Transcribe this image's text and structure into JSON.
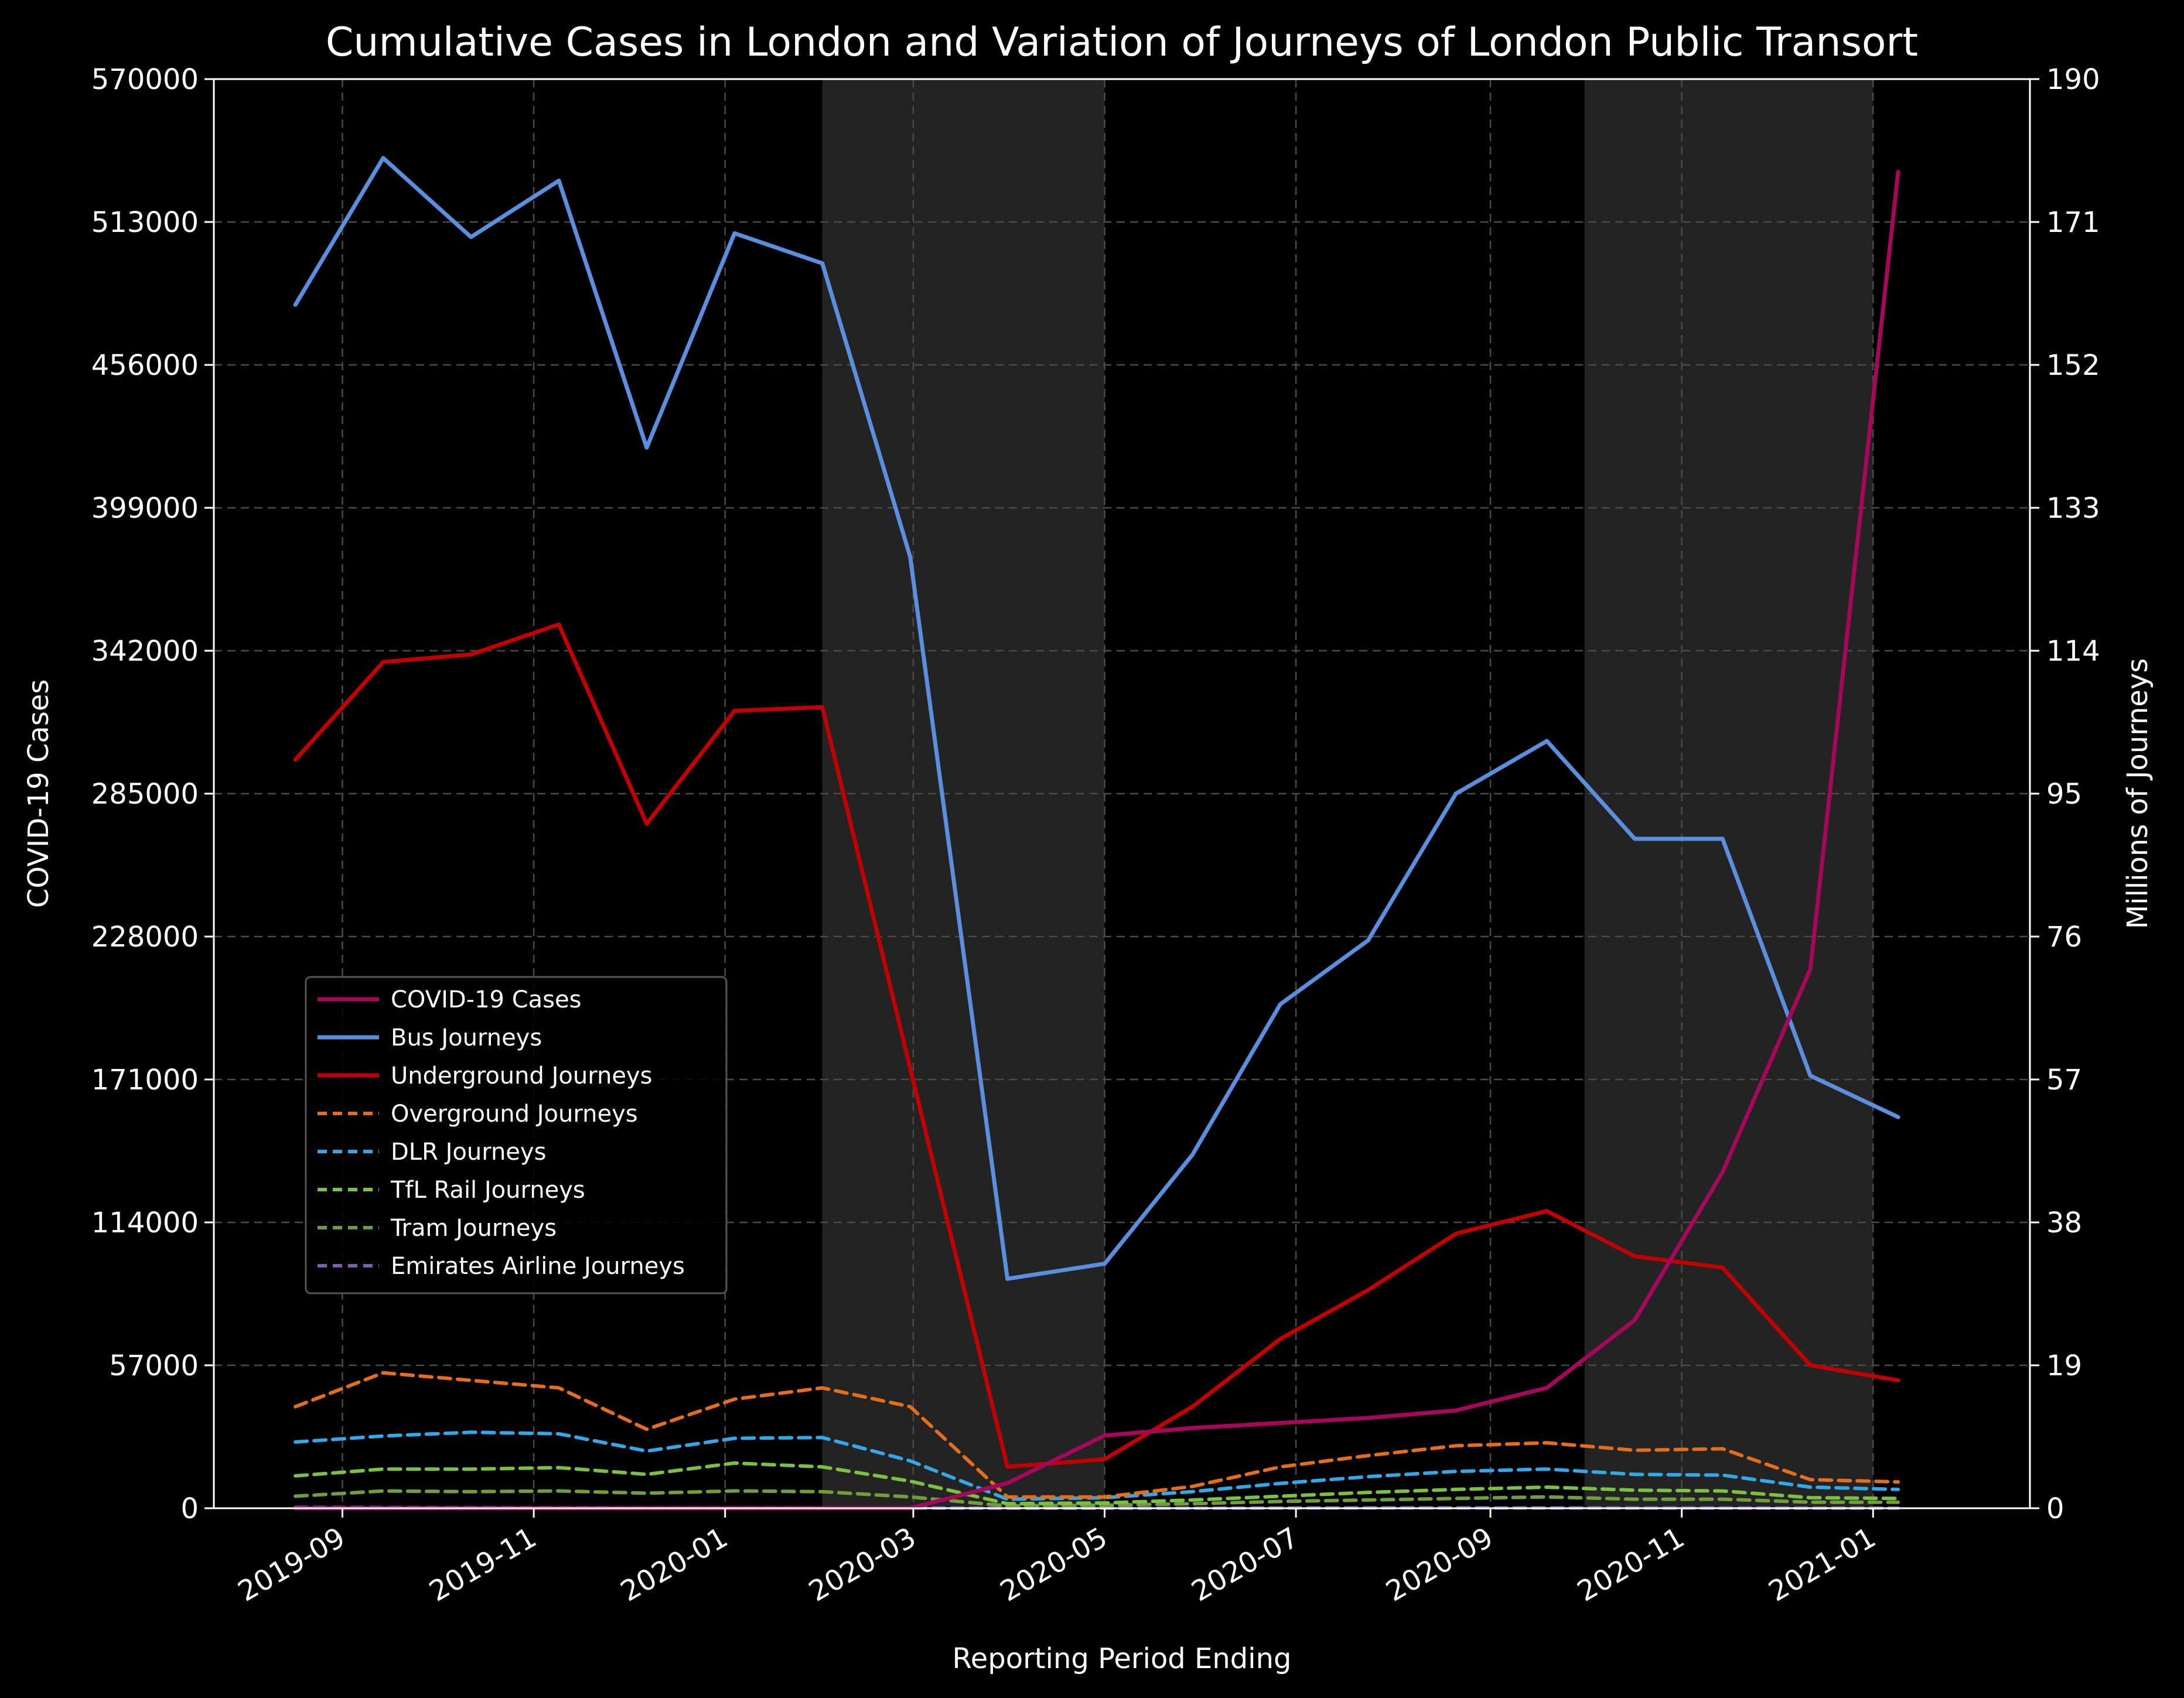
{
  "chart_data": {
    "type": "line",
    "title": "Cumulative Cases in London and Variation of Journeys of London Public Transort",
    "xlabel": "Reporting Period Ending",
    "ylabel_left": "COVID-19 Cases",
    "ylabel_right": "Millions of Journeys",
    "ylim_left": [
      0,
      570000
    ],
    "ylim_right": [
      0,
      190
    ],
    "xlim": [
      "2019-07-22",
      "2021-02-20"
    ],
    "left_ticks": [
      "0",
      "57000",
      "114000",
      "171000",
      "228000",
      "285000",
      "342000",
      "399000",
      "456000",
      "513000",
      "570000"
    ],
    "right_ticks": [
      "0",
      "19",
      "38",
      "57",
      "76",
      "95",
      "114",
      "133",
      "152",
      "171",
      "190"
    ],
    "x_ticks": [
      {
        "date": "2019-09-01",
        "label": "2019-09"
      },
      {
        "date": "2019-11-01",
        "label": "2019-11"
      },
      {
        "date": "2020-01-01",
        "label": "2020-01"
      },
      {
        "date": "2020-03-01",
        "label": "2020-03"
      },
      {
        "date": "2020-05-01",
        "label": "2020-05"
      },
      {
        "date": "2020-07-01",
        "label": "2020-07"
      },
      {
        "date": "2020-09-01",
        "label": "2020-09"
      },
      {
        "date": "2020-11-01",
        "label": "2020-11"
      },
      {
        "date": "2021-01-01",
        "label": "2021-01"
      }
    ],
    "grid": true,
    "legend_position": "lower-left",
    "shaded_periods": [
      {
        "start": "2020-02-01",
        "end": "2020-05-01"
      },
      {
        "start": "2020-10-01",
        "end": "2021-01-01"
      }
    ],
    "x": [
      "2019-08-17",
      "2019-09-14",
      "2019-10-12",
      "2019-11-09",
      "2019-12-07",
      "2020-01-04",
      "2020-02-01",
      "2020-02-29",
      "2020-03-31",
      "2020-05-01",
      "2020-05-29",
      "2020-06-26",
      "2020-07-24",
      "2020-08-21",
      "2020-09-19",
      "2020-10-17",
      "2020-11-14",
      "2020-12-12",
      "2021-01-09"
    ],
    "covid_series": {
      "name": "COVID-19 Cases",
      "axis": "left",
      "color": "#a3085a",
      "style": "solid",
      "values": [
        0,
        0,
        0,
        0,
        0,
        0,
        0,
        0,
        10000,
        29000,
        32000,
        34000,
        36000,
        39000,
        48000,
        75000,
        134000,
        215000,
        533000
      ]
    },
    "series": [
      {
        "name": "Bus Journeys",
        "axis": "right",
        "color": "#5b8fde",
        "style": "solid",
        "values": [
          160,
          179.5,
          169,
          176.5,
          141,
          169.5,
          165.5,
          126.5,
          30.5,
          32.5,
          47,
          67,
          75.5,
          95,
          102,
          89,
          89,
          57.5,
          52
        ]
      },
      {
        "name": "Underground Journeys",
        "axis": "right",
        "color": "#c00000",
        "style": "solid",
        "values": [
          99.5,
          112.5,
          113.5,
          117.5,
          91,
          106,
          106.5,
          58.5,
          5.5,
          6.5,
          13.5,
          22.5,
          29,
          36.5,
          39.5,
          33.5,
          32,
          19,
          17
        ]
      },
      {
        "name": "Overground Journeys",
        "axis": "right",
        "color": "#e46e1e",
        "style": "dashed",
        "values": [
          13.5,
          18,
          17,
          16,
          10.5,
          14.5,
          16,
          13.5,
          1.5,
          1.5,
          2.9,
          5.5,
          7,
          8.3,
          8.7,
          7.7,
          7.9,
          3.8,
          3.5
        ]
      },
      {
        "name": "DLR Journeys",
        "axis": "right",
        "color": "#35a7e6",
        "style": "dashed",
        "values": [
          8.8,
          9.6,
          10.1,
          9.9,
          7.6,
          9.3,
          9.4,
          6.3,
          1.2,
          1.4,
          2.2,
          3.3,
          4.2,
          4.9,
          5.2,
          4.5,
          4.4,
          2.8,
          2.5
        ]
      },
      {
        "name": "TfL Rail Journeys",
        "axis": "right",
        "color": "#7ac143",
        "style": "dashed",
        "values": [
          4.3,
          5.2,
          5.2,
          5.4,
          4.5,
          6,
          5.5,
          3.6,
          0.6,
          0.7,
          1.1,
          1.6,
          2.1,
          2.5,
          2.8,
          2.4,
          2.3,
          1.4,
          1.3
        ]
      },
      {
        "name": "Tram Journeys",
        "axis": "right",
        "color": "#6f9e3b",
        "style": "dashed",
        "values": [
          1.6,
          2.3,
          2.2,
          2.3,
          2,
          2.3,
          2.2,
          1.5,
          0.3,
          0.4,
          0.6,
          0.9,
          1.1,
          1.3,
          1.5,
          1.2,
          1.2,
          0.8,
          0.8
        ]
      },
      {
        "name": "Emirates Airline Journeys",
        "axis": "right",
        "color": "#7a5fa8",
        "style": "dashed",
        "values": [
          0.12,
          0.1,
          0.08,
          0.06,
          0.05,
          0.05,
          0.05,
          0.03,
          0,
          0,
          0.01,
          0.03,
          0.05,
          0.05,
          0.04,
          0.03,
          0.02,
          0.01,
          0.01
        ]
      }
    ]
  }
}
